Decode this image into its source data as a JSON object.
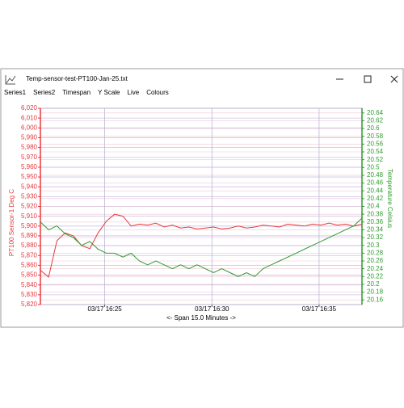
{
  "window": {
    "title": "Temp-sensor-test-PT100-Jan-25.txt",
    "menu": [
      "Series1",
      "Series2",
      "Timespan",
      "Y Scale",
      "Live",
      "Colours"
    ]
  },
  "chart_data": {
    "type": "line",
    "x_label": "<- Span 15.0 Minutes ->",
    "y_label": "PT100 Sensor-1 Deg C",
    "y2_label": "Temperature Celsius",
    "xlim": [
      "03/17 16:22",
      "03/17 16:37"
    ],
    "xticks": [
      "03/17 16:25",
      "03/17 16:30",
      "03/17 16:35"
    ],
    "ylim": [
      5820,
      6020
    ],
    "yticks": [
      {
        "value": 5820,
        "label": "5,820"
      },
      {
        "value": 5830,
        "label": "5,830"
      },
      {
        "value": 5840,
        "label": "5,840"
      },
      {
        "value": 5850,
        "label": "5,850"
      },
      {
        "value": 5860,
        "label": "5,860"
      },
      {
        "value": 5870,
        "label": "5,870"
      },
      {
        "value": 5880,
        "label": "5,880"
      },
      {
        "value": 5890,
        "label": "5,890"
      },
      {
        "value": 5900,
        "label": "5,900"
      },
      {
        "value": 5910,
        "label": "5,910"
      },
      {
        "value": 5920,
        "label": "5,920"
      },
      {
        "value": 5930,
        "label": "5,930"
      },
      {
        "value": 5940,
        "label": "5,940"
      },
      {
        "value": 5950,
        "label": "5,950"
      },
      {
        "value": 5960,
        "label": "5,960"
      },
      {
        "value": 5970,
        "label": "5,970"
      },
      {
        "value": 5980,
        "label": "5,980"
      },
      {
        "value": 5990,
        "label": "5,990"
      },
      {
        "value": 6000,
        "label": "6,000"
      },
      {
        "value": 6010,
        "label": "6,010"
      },
      {
        "value": 6020,
        "label": "6,020"
      }
    ],
    "y2lim": [
      20.148,
      20.652
    ],
    "y2ticks": [
      20.16,
      20.18,
      20.2,
      20.22,
      20.24,
      20.26,
      20.28,
      20.3,
      20.32,
      20.34,
      20.36,
      20.38,
      20.4,
      20.42,
      20.44,
      20.46,
      20.48,
      20.5,
      20.52,
      20.54,
      20.56,
      20.58,
      20.6,
      20.62,
      20.64
    ],
    "grid": true,
    "series": [
      {
        "color": "#e8383d",
        "values": [
          5855,
          5848,
          5885,
          5893,
          5890,
          5880,
          5877,
          5893,
          5905,
          5912,
          5910,
          5900,
          5902,
          5901,
          5903,
          5899,
          5901,
          5898,
          5899,
          5897,
          5898,
          5899,
          5897,
          5898,
          5900,
          5898,
          5899,
          5901,
          5900,
          5899,
          5902,
          5901,
          5900,
          5902,
          5901,
          5903,
          5901,
          5902,
          5900,
          5902
        ]
      },
      {
        "color": "#2e9a2e",
        "axis": "y2",
        "values": [
          20.36,
          20.34,
          20.35,
          20.33,
          20.32,
          20.3,
          20.31,
          20.29,
          20.28,
          20.28,
          20.27,
          20.28,
          20.26,
          20.25,
          20.26,
          20.25,
          20.24,
          20.25,
          20.24,
          20.25,
          20.24,
          20.23,
          20.24,
          20.23,
          20.22,
          20.23,
          20.22,
          20.24,
          20.25,
          20.26,
          20.27,
          20.28,
          20.29,
          20.3,
          20.31,
          20.32,
          20.33,
          20.34,
          20.35,
          20.37
        ]
      }
    ]
  }
}
